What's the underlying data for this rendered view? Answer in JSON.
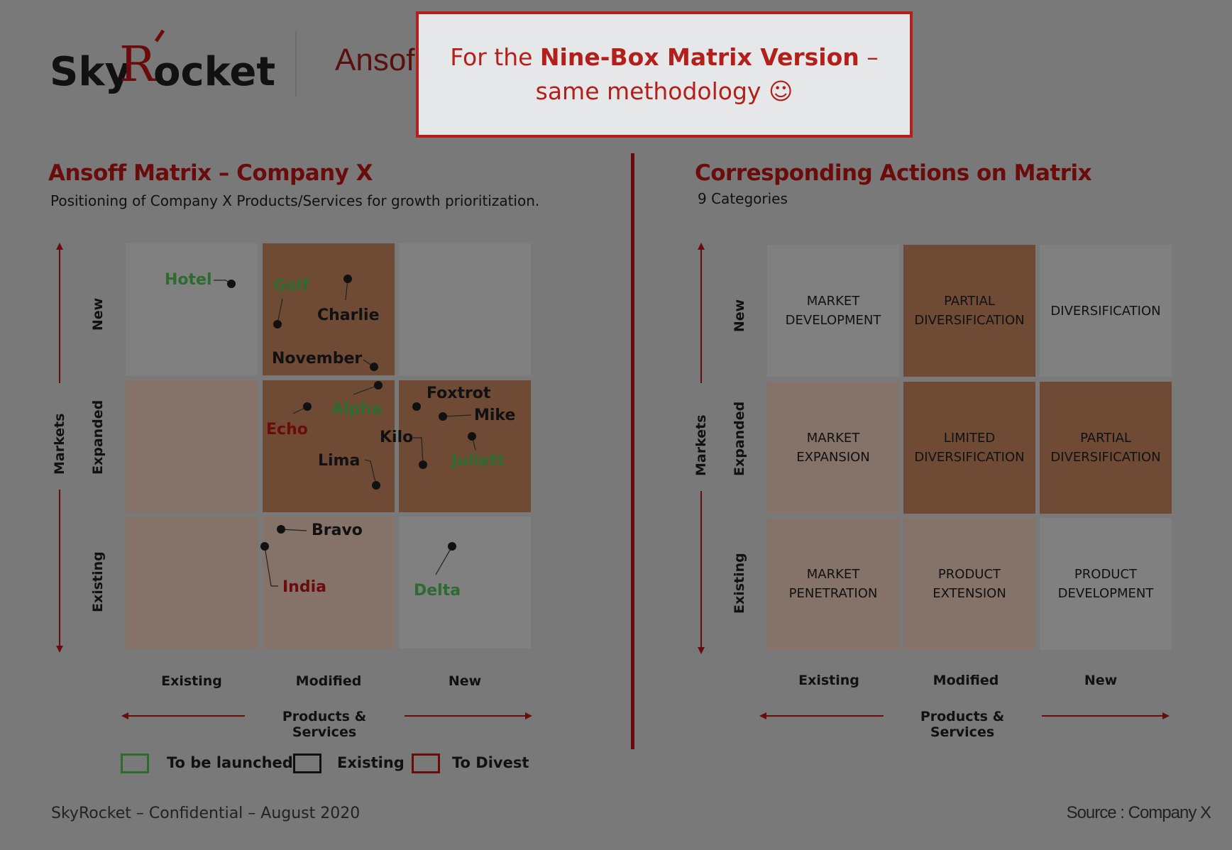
{
  "header": {
    "logo_text": "SkyRocket",
    "partial_title": "Ansof",
    "callout_prefix": "For the ",
    "callout_bold": "Nine-Box Matrix Version",
    "callout_suffix": " – same methodology ☺"
  },
  "left": {
    "title": "Ansoff Matrix – Company X",
    "subtitle": "Positioning of Company X Products/Services for growth prioritization.",
    "y_axis_label": "Markets",
    "x_axis_label": "Products & Services",
    "row_labels": [
      "New",
      "Expanded",
      "Existing"
    ],
    "col_labels": [
      "Existing",
      "Modified",
      "New"
    ],
    "points": [
      {
        "name": "Hotel",
        "status": "To be launched"
      },
      {
        "name": "Golf",
        "status": "To be launched"
      },
      {
        "name": "Charlie",
        "status": "Existing"
      },
      {
        "name": "November",
        "status": "Existing"
      },
      {
        "name": "Alpha",
        "status": "To be launched"
      },
      {
        "name": "Echo",
        "status": "To Divest"
      },
      {
        "name": "Foxtrot",
        "status": "Existing"
      },
      {
        "name": "Mike",
        "status": "Existing"
      },
      {
        "name": "Kilo",
        "status": "Existing"
      },
      {
        "name": "Juliett",
        "status": "To be launched"
      },
      {
        "name": "Lima",
        "status": "Existing"
      },
      {
        "name": "Bravo",
        "status": "Existing"
      },
      {
        "name": "India",
        "status": "To Divest"
      },
      {
        "name": "Delta",
        "status": "To be launched"
      }
    ],
    "legend": [
      {
        "label": "To be launched",
        "color": "#2e6b2e"
      },
      {
        "label": "Existing",
        "color": "#111111"
      },
      {
        "label": "To Divest",
        "color": "#6b0c0c"
      }
    ]
  },
  "right": {
    "title": "Corresponding Actions on Matrix",
    "subtitle": "9 Categories",
    "y_axis_label": "Markets",
    "x_axis_label": "Products & Services",
    "row_labels": [
      "New",
      "Expanded",
      "Existing"
    ],
    "col_labels": [
      "Existing",
      "Modified",
      "New"
    ],
    "cells": [
      [
        "MARKET\nDEVELOPMENT",
        "PARTIAL\nDIVERSIFICATION",
        "DIVERSIFICATION"
      ],
      [
        "MARKET\nEXPANSION",
        "LIMITED\nDIVERSIFICATION",
        "PARTIAL\nDIVERSIFICATION"
      ],
      [
        "MARKET\nPENETRATION",
        "PRODUCT\nEXTENSION",
        "PRODUCT\nDEVELOPMENT"
      ]
    ]
  },
  "footer": {
    "left": "SkyRocket – Confidential – August 2020",
    "right": "Source : Company X"
  },
  "colors": {
    "accent": "#6b0c0c",
    "callout_border": "#b3201c",
    "green": "#2e6b2e",
    "cell_grey": "#808080",
    "cell_tan": "#857369",
    "cell_brown": "#6f4b36"
  }
}
